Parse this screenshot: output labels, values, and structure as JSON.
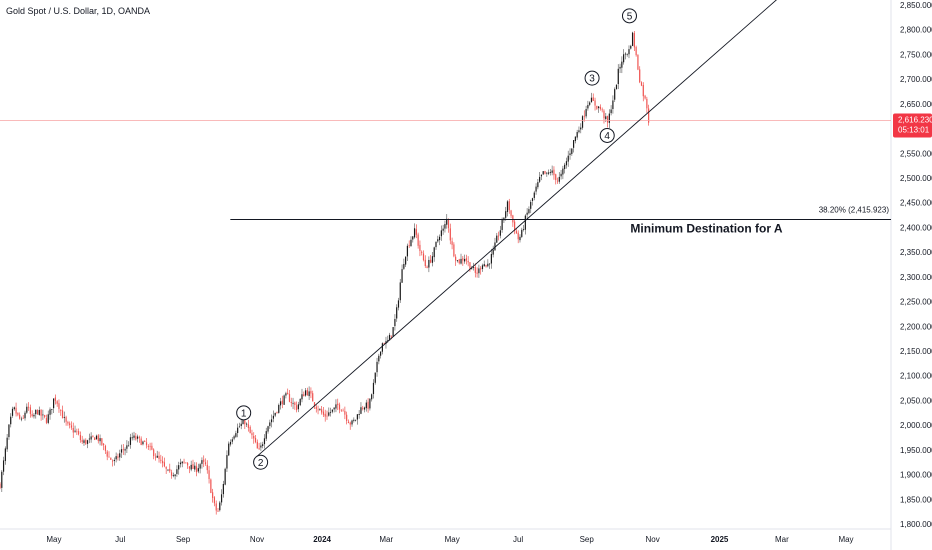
{
  "header": {
    "title": "Gold Spot / U.S. Dollar, 1D, OANDA"
  },
  "colors": {
    "up": "#26a69a",
    "down": "#ef5350",
    "up_body": "#1a1a1a",
    "line": "#131722",
    "price_line": "#f7a3a3",
    "price_badge": "#f23645"
  },
  "chart_data": {
    "type": "candlestick",
    "symbol": "Gold Spot / U.S. Dollar",
    "interval": "1D",
    "ylim": [
      1790,
      2860
    ],
    "y_ticks": [
      "2,850.000",
      "2,800.000",
      "2,750.000",
      "2,700.000",
      "2,650.000",
      "2,550.000",
      "2,500.000",
      "2,450.000",
      "2,400.000",
      "2,350.000",
      "2,300.000",
      "2,250.000",
      "2,200.000",
      "2,150.000",
      "2,100.000",
      "2,050.000",
      "2,000.000",
      "1,950.000",
      "1,900.000",
      "1,850.000",
      "1,800.000"
    ],
    "x_ticks": [
      "May",
      "Jul",
      "Sep",
      "Nov",
      "2024",
      "Mar",
      "May",
      "Jul",
      "Sep",
      "Nov",
      "2025",
      "Mar",
      "May"
    ],
    "x_tick_bold": [
      false,
      false,
      false,
      false,
      true,
      false,
      false,
      false,
      false,
      false,
      true,
      false,
      false
    ],
    "last_price": {
      "value": "2,616.230",
      "countdown": "05:13:01",
      "price": 2616.23
    },
    "fib_level": {
      "label": "38.20% (2,415.923)",
      "price": 2415.923
    },
    "annotation": "Minimum Destination for A",
    "waves": [
      {
        "label": "1",
        "t": 0.2735,
        "price": 2025
      },
      {
        "label": "2",
        "t": 0.2925,
        "price": 1925
      },
      {
        "label": "3",
        "t": 0.6645,
        "price": 2702
      },
      {
        "label": "4",
        "t": 0.6815,
        "price": 2586
      },
      {
        "label": "5",
        "t": 0.7065,
        "price": 2828
      }
    ],
    "trendline": {
      "start": {
        "t": 0.2885,
        "price": 1937
      },
      "end": {
        "t": 0.8725,
        "price": 2862
      }
    },
    "path": [
      [
        0.0,
        1880
      ],
      [
        0.004,
        1925
      ],
      [
        0.01,
        1995
      ],
      [
        0.015,
        2035
      ],
      [
        0.02,
        2018
      ],
      [
        0.025,
        2005
      ],
      [
        0.03,
        2040
      ],
      [
        0.036,
        2012
      ],
      [
        0.041,
        2030
      ],
      [
        0.047,
        2018
      ],
      [
        0.052,
        2010
      ],
      [
        0.057,
        2030
      ],
      [
        0.061,
        2058
      ],
      [
        0.066,
        2040
      ],
      [
        0.07,
        2020
      ],
      [
        0.075,
        2000
      ],
      [
        0.08,
        1992
      ],
      [
        0.086,
        1985
      ],
      [
        0.092,
        1965
      ],
      [
        0.1,
        1968
      ],
      [
        0.108,
        1978
      ],
      [
        0.115,
        1960
      ],
      [
        0.122,
        1935
      ],
      [
        0.128,
        1925
      ],
      [
        0.132,
        1935
      ],
      [
        0.137,
        1950
      ],
      [
        0.142,
        1955
      ],
      [
        0.148,
        1975
      ],
      [
        0.154,
        1972
      ],
      [
        0.16,
        1965
      ],
      [
        0.166,
        1955
      ],
      [
        0.172,
        1945
      ],
      [
        0.178,
        1930
      ],
      [
        0.184,
        1915
      ],
      [
        0.19,
        1900
      ],
      [
        0.196,
        1905
      ],
      [
        0.202,
        1920
      ],
      [
        0.208,
        1925
      ],
      [
        0.214,
        1915
      ],
      [
        0.22,
        1910
      ],
      [
        0.226,
        1925
      ],
      [
        0.231,
        1918
      ],
      [
        0.236,
        1875
      ],
      [
        0.24,
        1840
      ],
      [
        0.244,
        1822
      ],
      [
        0.248,
        1850
      ],
      [
        0.252,
        1900
      ],
      [
        0.256,
        1962
      ],
      [
        0.26,
        1975
      ],
      [
        0.265,
        1990
      ],
      [
        0.27,
        2000
      ],
      [
        0.275,
        2008
      ],
      [
        0.28,
        1985
      ],
      [
        0.285,
        1970
      ],
      [
        0.29,
        1945
      ],
      [
        0.294,
        1960
      ],
      [
        0.299,
        1995
      ],
      [
        0.304,
        2010
      ],
      [
        0.31,
        2030
      ],
      [
        0.316,
        2048
      ],
      [
        0.322,
        2060
      ],
      [
        0.328,
        2045
      ],
      [
        0.333,
        2035
      ],
      [
        0.338,
        2055
      ],
      [
        0.343,
        2070
      ],
      [
        0.348,
        2062
      ],
      [
        0.354,
        2040
      ],
      [
        0.359,
        2030
      ],
      [
        0.364,
        2018
      ],
      [
        0.369,
        2025
      ],
      [
        0.374,
        2030
      ],
      [
        0.379,
        2040
      ],
      [
        0.384,
        2035
      ],
      [
        0.389,
        2015
      ],
      [
        0.394,
        2002
      ],
      [
        0.399,
        2012
      ],
      [
        0.404,
        2032
      ],
      [
        0.409,
        2040
      ],
      [
        0.414,
        2038
      ],
      [
        0.418,
        2070
      ],
      [
        0.422,
        2110
      ],
      [
        0.426,
        2150
      ],
      [
        0.43,
        2170
      ],
      [
        0.434,
        2165
      ],
      [
        0.438,
        2180
      ],
      [
        0.442,
        2200
      ],
      [
        0.446,
        2240
      ],
      [
        0.45,
        2300
      ],
      [
        0.454,
        2340
      ],
      [
        0.458,
        2365
      ],
      [
        0.462,
        2380
      ],
      [
        0.466,
        2395
      ],
      [
        0.47,
        2360
      ],
      [
        0.474,
        2340
      ],
      [
        0.478,
        2320
      ],
      [
        0.482,
        2330
      ],
      [
        0.486,
        2345
      ],
      [
        0.49,
        2370
      ],
      [
        0.494,
        2390
      ],
      [
        0.498,
        2395
      ],
      [
        0.502,
        2420
      ],
      [
        0.506,
        2370
      ],
      [
        0.51,
        2345
      ],
      [
        0.514,
        2330
      ],
      [
        0.518,
        2335
      ],
      [
        0.522,
        2340
      ],
      [
        0.526,
        2325
      ],
      [
        0.53,
        2318
      ],
      [
        0.534,
        2305
      ],
      [
        0.538,
        2315
      ],
      [
        0.542,
        2330
      ],
      [
        0.546,
        2320
      ],
      [
        0.55,
        2335
      ],
      [
        0.554,
        2352
      ],
      [
        0.558,
        2380
      ],
      [
        0.562,
        2398
      ],
      [
        0.566,
        2425
      ],
      [
        0.57,
        2450
      ],
      [
        0.574,
        2420
      ],
      [
        0.578,
        2395
      ],
      [
        0.582,
        2375
      ],
      [
        0.586,
        2390
      ],
      [
        0.59,
        2420
      ],
      [
        0.594,
        2440
      ],
      [
        0.598,
        2460
      ],
      [
        0.602,
        2480
      ],
      [
        0.606,
        2498
      ],
      [
        0.61,
        2510
      ],
      [
        0.614,
        2505
      ],
      [
        0.618,
        2515
      ],
      [
        0.622,
        2505
      ],
      [
        0.626,
        2495
      ],
      [
        0.63,
        2505
      ],
      [
        0.634,
        2525
      ],
      [
        0.638,
        2545
      ],
      [
        0.642,
        2565
      ],
      [
        0.646,
        2585
      ],
      [
        0.65,
        2600
      ],
      [
        0.654,
        2620
      ],
      [
        0.658,
        2645
      ],
      [
        0.662,
        2660
      ],
      [
        0.666,
        2652
      ],
      [
        0.67,
        2645
      ],
      [
        0.674,
        2640
      ],
      [
        0.678,
        2625
      ],
      [
        0.682,
        2610
      ],
      [
        0.686,
        2645
      ],
      [
        0.69,
        2675
      ],
      [
        0.694,
        2715
      ],
      [
        0.698,
        2740
      ],
      [
        0.702,
        2752
      ],
      [
        0.706,
        2758
      ],
      [
        0.71,
        2790
      ],
      [
        0.714,
        2745
      ],
      [
        0.718,
        2700
      ],
      [
        0.722,
        2670
      ],
      [
        0.726,
        2645
      ],
      [
        0.728,
        2616
      ]
    ]
  }
}
